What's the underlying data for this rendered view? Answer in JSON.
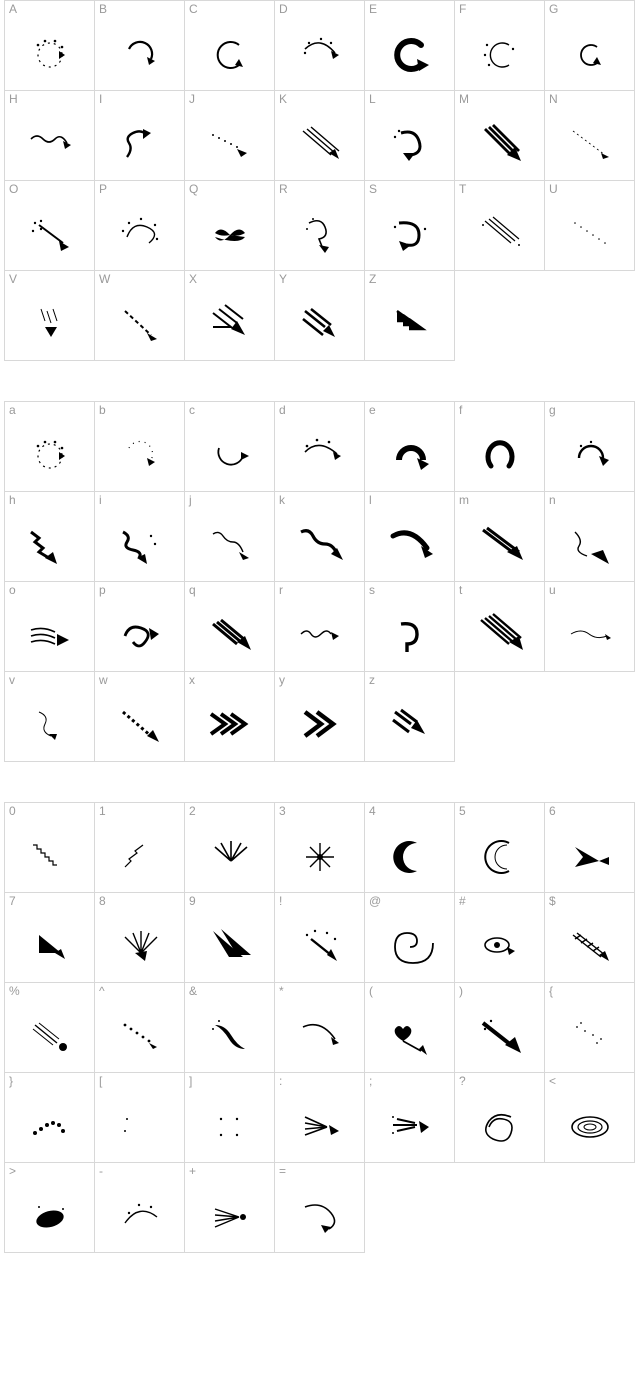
{
  "label_color": "#9a9a9a",
  "label_fontsize": 12,
  "glyph_color": "#000000",
  "border_color": "#d8d8d8",
  "background_color": "#ffffff",
  "cell_size": 90,
  "columns": 7,
  "glyph_svg_width": 58,
  "glyph_svg_height": 48,
  "blocks": [
    {
      "name": "uppercase",
      "cells": [
        {
          "char": "A",
          "glyph": "dotcircle-arrow"
        },
        {
          "char": "B",
          "glyph": "circle-arrow-cw"
        },
        {
          "char": "C",
          "glyph": "open-c-arrow"
        },
        {
          "char": "D",
          "glyph": "dots-swoop-arrow"
        },
        {
          "char": "E",
          "glyph": "bold-c-arrow"
        },
        {
          "char": "F",
          "glyph": "thin-c-dots"
        },
        {
          "char": "G",
          "glyph": "c-arrow-small"
        },
        {
          "char": "H",
          "glyph": "wavy-right"
        },
        {
          "char": "I",
          "glyph": "squiggle-up"
        },
        {
          "char": "J",
          "glyph": "dot-trail-right"
        },
        {
          "char": "K",
          "glyph": "stripes-down"
        },
        {
          "char": "L",
          "glyph": "curl-down"
        },
        {
          "char": "M",
          "glyph": "speed-down"
        },
        {
          "char": "N",
          "glyph": "faint-diag"
        },
        {
          "char": "O",
          "glyph": "dots-diag-arrow"
        },
        {
          "char": "P",
          "glyph": "swirl-dots"
        },
        {
          "char": "Q",
          "glyph": "pinwheel"
        },
        {
          "char": "R",
          "glyph": "loop-down"
        },
        {
          "char": "S",
          "glyph": "hook-down"
        },
        {
          "char": "T",
          "glyph": "stripes-diag"
        },
        {
          "char": "U",
          "glyph": "faint-dots-diag"
        },
        {
          "char": "V",
          "glyph": "dripping-down"
        },
        {
          "char": "W",
          "glyph": "dashed-diag"
        },
        {
          "char": "X",
          "glyph": "chevron-feather"
        },
        {
          "char": "Y",
          "glyph": "double-feather"
        },
        {
          "char": "Z",
          "glyph": "stacked-chevron"
        }
      ]
    },
    {
      "name": "lowercase",
      "cells": [
        {
          "char": "a",
          "glyph": "dotcircle-arrow"
        },
        {
          "char": "b",
          "glyph": "dots-c-arrow"
        },
        {
          "char": "c",
          "glyph": "c-right-arrow"
        },
        {
          "char": "d",
          "glyph": "dot-swoop-right"
        },
        {
          "char": "e",
          "glyph": "bold-redo"
        },
        {
          "char": "f",
          "glyph": "horseshoe"
        },
        {
          "char": "g",
          "glyph": "dot-redo"
        },
        {
          "char": "h",
          "glyph": "zigzag-diag"
        },
        {
          "char": "i",
          "glyph": "squiggle-diag"
        },
        {
          "char": "j",
          "glyph": "wavy-diag"
        },
        {
          "char": "k",
          "glyph": "wavy-solid-diag"
        },
        {
          "char": "l",
          "glyph": "swoop-bold"
        },
        {
          "char": "m",
          "glyph": "triangle-speed"
        },
        {
          "char": "n",
          "glyph": "curl-solid-diag"
        },
        {
          "char": "o",
          "glyph": "wind-right"
        },
        {
          "char": "p",
          "glyph": "swirl-right"
        },
        {
          "char": "q",
          "glyph": "brush-diag"
        },
        {
          "char": "r",
          "glyph": "squiggle-right"
        },
        {
          "char": "s",
          "glyph": "question-hook"
        },
        {
          "char": "t",
          "glyph": "stripes-solid"
        },
        {
          "char": "u",
          "glyph": "thin-wave-right"
        },
        {
          "char": "v",
          "glyph": "thin-curl-down"
        },
        {
          "char": "w",
          "glyph": "dashed-bold-diag"
        },
        {
          "char": "x",
          "glyph": "triple-chevron"
        },
        {
          "char": "y",
          "glyph": "double-chevron"
        },
        {
          "char": "z",
          "glyph": "feather-chevron"
        }
      ]
    },
    {
      "name": "digits-symbols",
      "cells": [
        {
          "char": "0",
          "glyph": "step-diag"
        },
        {
          "char": "1",
          "glyph": "zig-up"
        },
        {
          "char": "2",
          "glyph": "burst-lines"
        },
        {
          "char": "3",
          "glyph": "starburst"
        },
        {
          "char": "4",
          "glyph": "crescent-bold"
        },
        {
          "char": "5",
          "glyph": "crescent-thin"
        },
        {
          "char": "6",
          "glyph": "shuttle"
        },
        {
          "char": "7",
          "glyph": "tri-down"
        },
        {
          "char": "8",
          "glyph": "fan-down"
        },
        {
          "char": "9",
          "glyph": "solid-speed-down"
        },
        {
          "char": "!",
          "glyph": "sparkle-down"
        },
        {
          "char": "@",
          "glyph": "spiral"
        },
        {
          "char": "#",
          "glyph": "eye-arrow"
        },
        {
          "char": "$",
          "glyph": "hatch-diag"
        },
        {
          "char": "%",
          "glyph": "comet-diag"
        },
        {
          "char": "^",
          "glyph": "dot-dash-diag"
        },
        {
          "char": "&",
          "glyph": "leaf-diag"
        },
        {
          "char": "*",
          "glyph": "curve-right"
        },
        {
          "char": "(",
          "glyph": "heart-arrow"
        },
        {
          "char": ")",
          "glyph": "bold-solid-diag"
        },
        {
          "char": "{",
          "glyph": "sparse-dots"
        },
        {
          "char": "}",
          "glyph": "dot-trail-curve"
        },
        {
          "char": "[",
          "glyph": "crescent-small"
        },
        {
          "char": "]",
          "glyph": "four-dots"
        },
        {
          "char": ":",
          "glyph": "fan-right-arrow"
        },
        {
          "char": ";",
          "glyph": "spark-right"
        },
        {
          "char": "?",
          "glyph": "scribble-spiral"
        },
        {
          "char": "<",
          "glyph": "orbit-oval"
        },
        {
          "char": ">",
          "glyph": "oval-solid"
        },
        {
          "char": "-",
          "glyph": "arc-dots"
        },
        {
          "char": "+",
          "glyph": "fan-right"
        },
        {
          "char": "=",
          "glyph": "hook-right"
        }
      ]
    }
  ]
}
